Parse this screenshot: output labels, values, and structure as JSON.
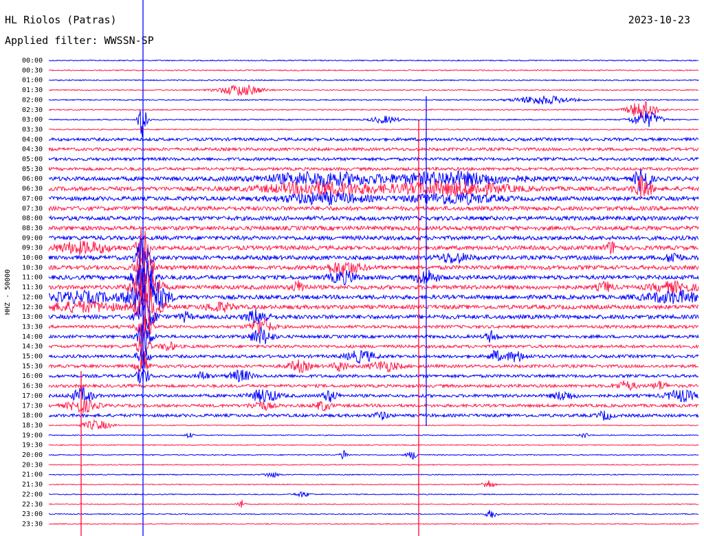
{
  "header": {
    "station": "HL Riolos (Patras)",
    "date": "2023-10-23",
    "filter": "Applied filter: WWSSN-SP"
  },
  "chart_data": {
    "type": "helicorder",
    "ylabel": "HHZ - 50000",
    "trace_colors": [
      "#0000ff",
      "#ff1a4a"
    ],
    "marker_color_blue": "#0000ff",
    "marker_color_red": "#ff0033",
    "rows": [
      "00:00",
      "00:30",
      "01:00",
      "01:30",
      "02:00",
      "02:30",
      "03:00",
      "03:30",
      "04:00",
      "04:30",
      "05:00",
      "05:30",
      "06:00",
      "06:30",
      "07:00",
      "07:30",
      "08:00",
      "08:30",
      "09:00",
      "09:30",
      "10:00",
      "10:30",
      "11:00",
      "11:30",
      "12:00",
      "12:30",
      "13:00",
      "13:30",
      "14:00",
      "14:30",
      "15:00",
      "15:30",
      "16:00",
      "16:30",
      "17:00",
      "17:30",
      "18:00",
      "18:30",
      "19:00",
      "19:30",
      "20:00",
      "20:30",
      "21:00",
      "21:30",
      "22:00",
      "22:30",
      "23:00",
      "23:30"
    ]
  }
}
